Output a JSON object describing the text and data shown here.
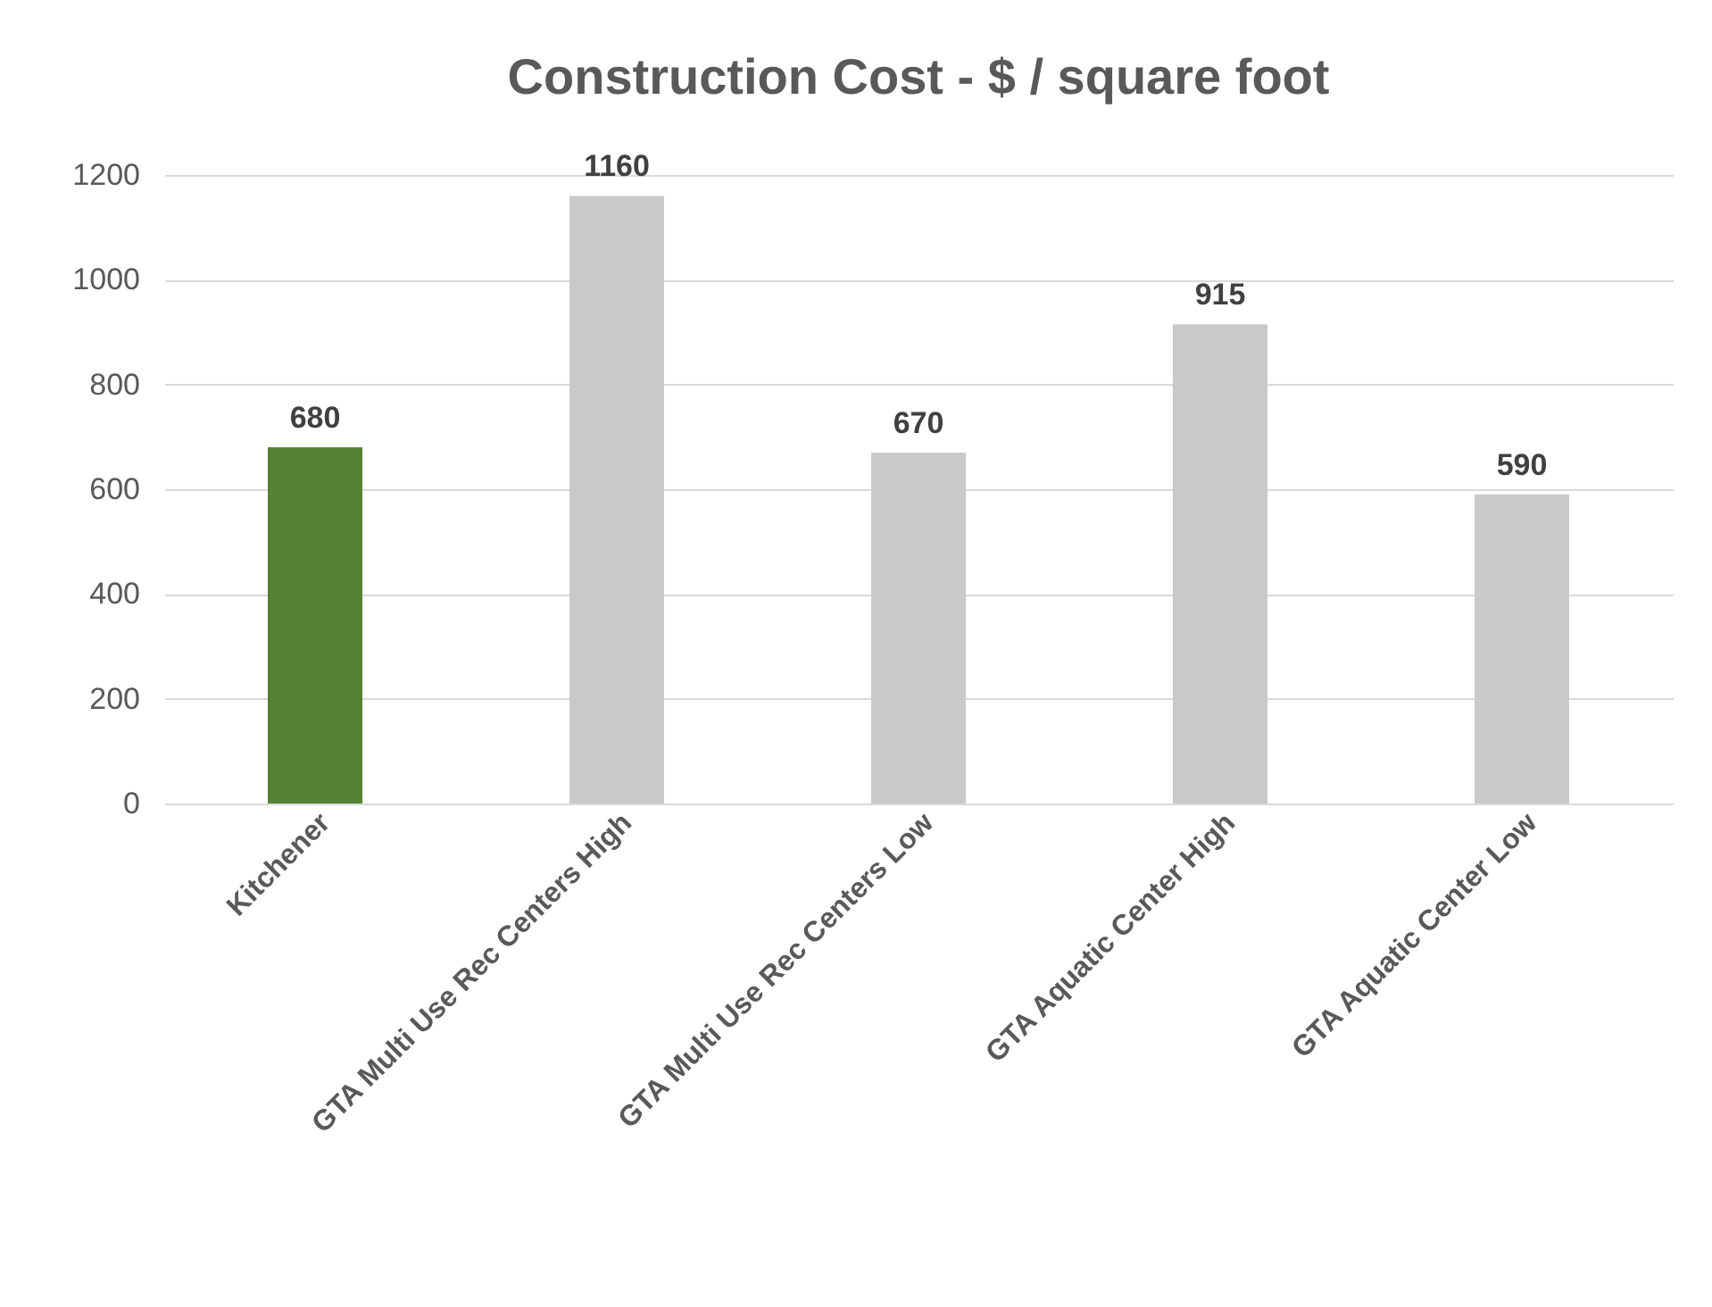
{
  "chart_data": {
    "type": "bar",
    "title": "Construction Cost - $ / square foot",
    "categories": [
      "Kitchener",
      "GTA Multi Use Rec Centers High",
      "GTA Multi Use Rec Centers Low",
      "GTA Aquatic Center High",
      "GTA Aquatic Center Low"
    ],
    "values": [
      680,
      1160,
      670,
      915,
      590
    ],
    "colors": [
      "#548235",
      "#c9c9c9",
      "#c9c9c9",
      "#c9c9c9",
      "#c9c9c9"
    ],
    "ylim": [
      0,
      1200
    ],
    "yticks": [
      0,
      200,
      400,
      600,
      800,
      1000,
      1200
    ],
    "grid": "y",
    "data_labels": true
  }
}
